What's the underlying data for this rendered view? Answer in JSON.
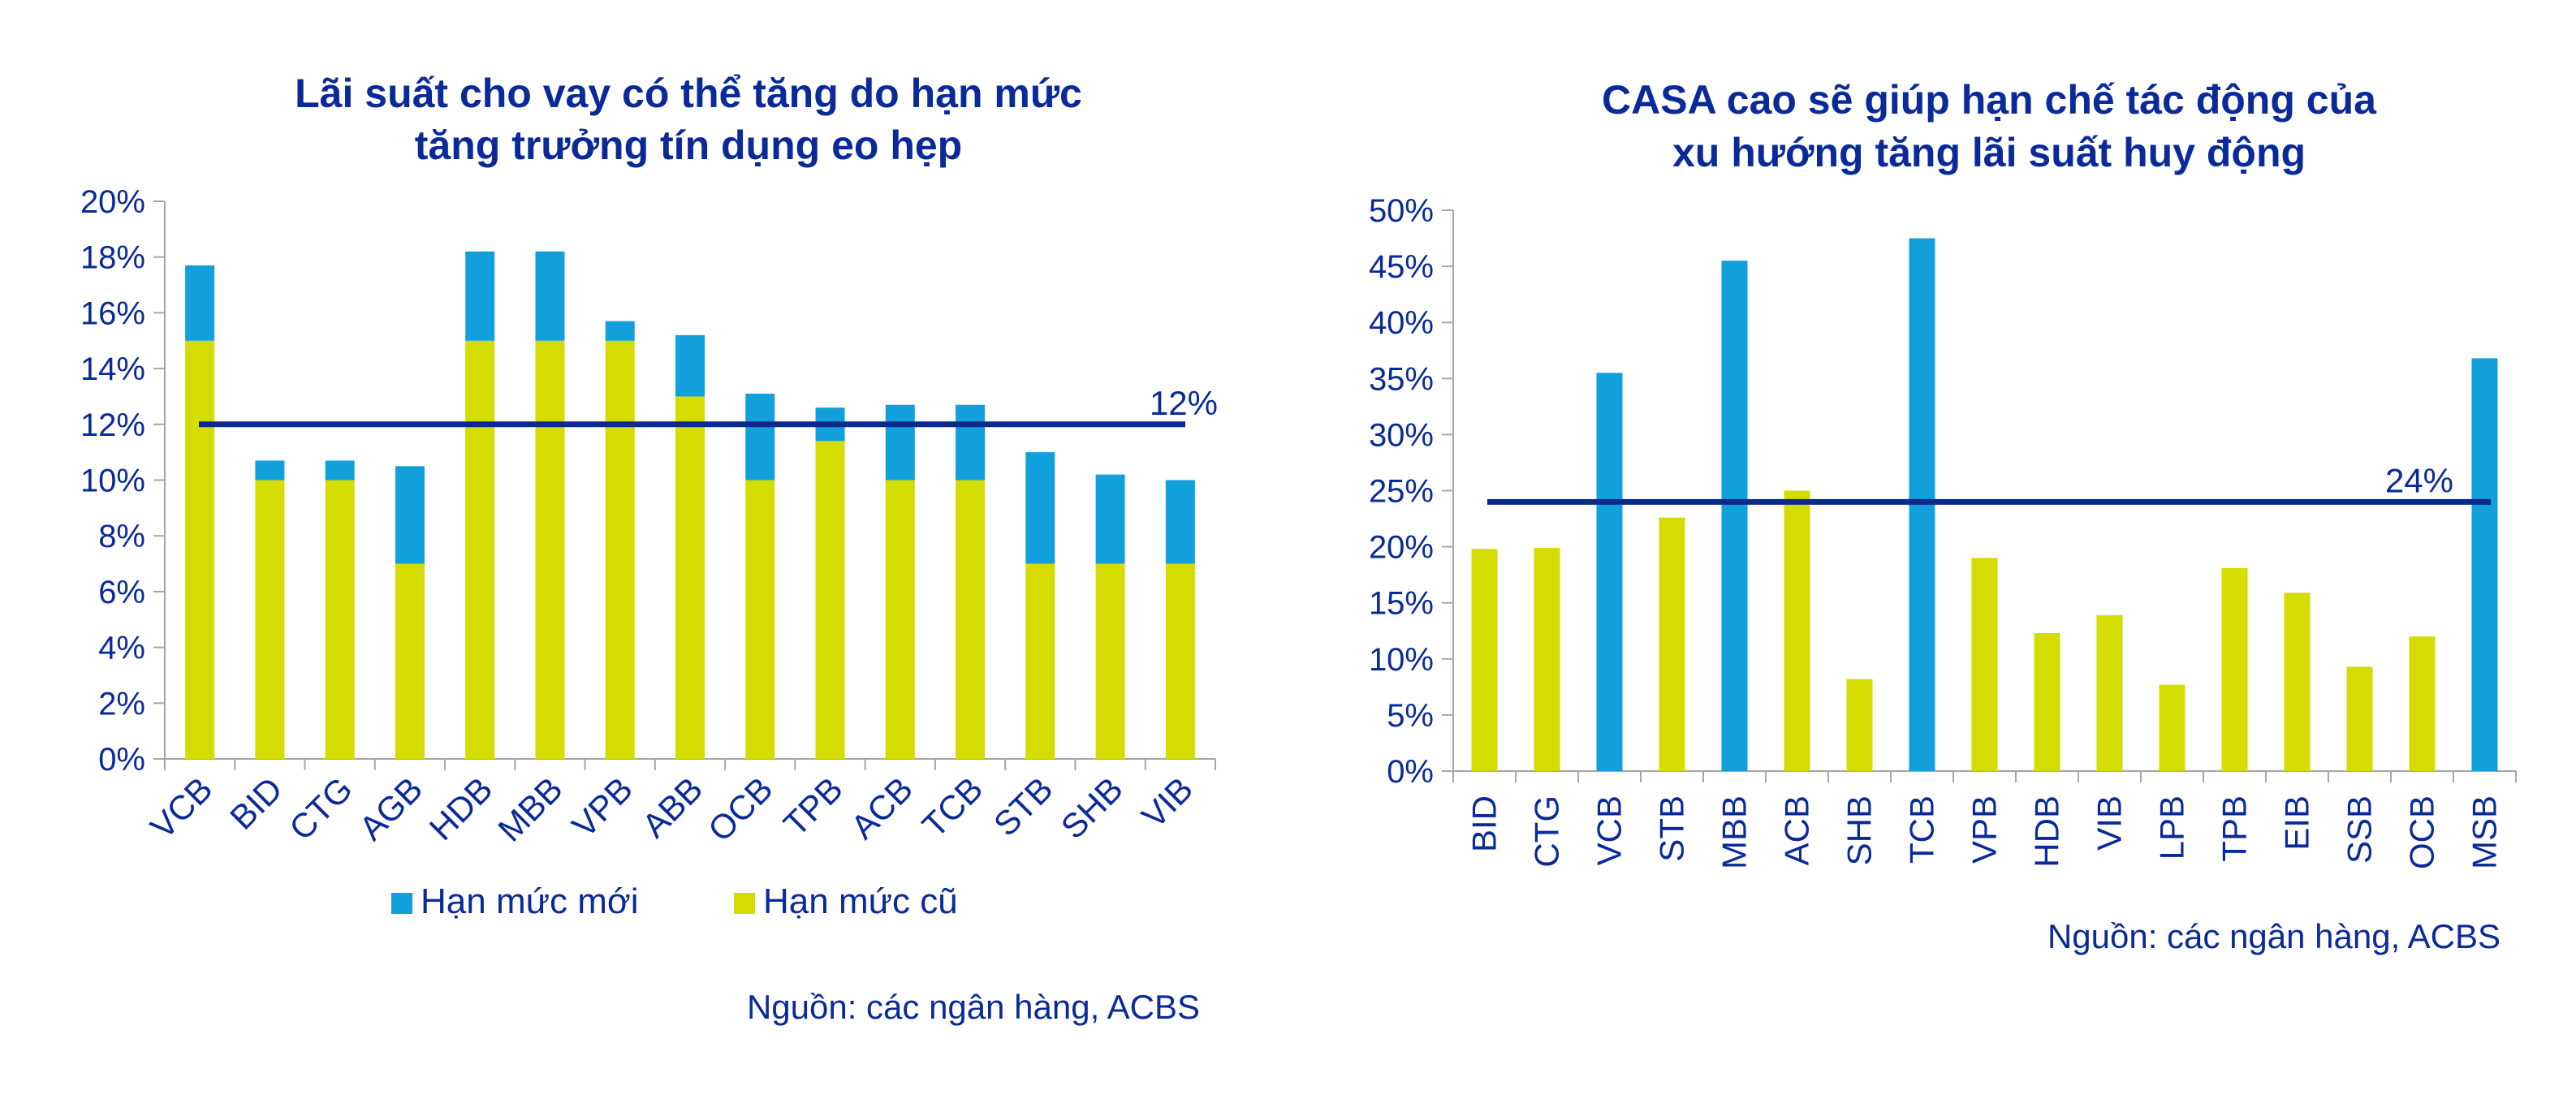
{
  "colors": {
    "text": "#0a2a9a",
    "blue": "#12a0dc",
    "yellow": "#d4dc00",
    "axis": "#a6a6a6",
    "refline": "#0c2a8c"
  },
  "chart_data": [
    {
      "type": "bar",
      "stacked": true,
      "title_lines": [
        "Lãi suất cho vay có thể tăng do hạn mức",
        "tăng trưởng tín dụng eo hẹp"
      ],
      "categories": [
        "VCB",
        "BID",
        "CTG",
        "AGB",
        "HDB",
        "MBB",
        "VPB",
        "ABB",
        "OCB",
        "TPB",
        "ACB",
        "TCB",
        "STB",
        "SHB",
        "VIB"
      ],
      "series": [
        {
          "name": "Hạn mức cũ",
          "color": "#d4dc00",
          "values": [
            15,
            10,
            10,
            7,
            15,
            15,
            15,
            13,
            10,
            11.4,
            10,
            10,
            7,
            7,
            7
          ]
        },
        {
          "name": "Hạn mức mới",
          "color": "#12a0dc",
          "values": [
            2.7,
            0.7,
            0.7,
            3.5,
            3.2,
            3.2,
            0.7,
            2.2,
            3.1,
            1.2,
            2.7,
            2.7,
            4,
            3.2,
            3
          ]
        }
      ],
      "ylim": [
        0,
        20
      ],
      "yticks": [
        "0%",
        "2%",
        "4%",
        "6%",
        "8%",
        "10%",
        "12%",
        "14%",
        "16%",
        "18%",
        "20%"
      ],
      "reference_line": {
        "value": 12,
        "label": "12%"
      },
      "legend": [
        "Hạn mức mới",
        "Hạn mức cũ"
      ],
      "legend_position": "bottom",
      "source": "Nguồn: các ngân hàng, ACBS"
    },
    {
      "type": "bar",
      "title_lines": [
        "CASA cao sẽ giúp hạn chế tác động của",
        "xu hướng tăng lãi suất huy động"
      ],
      "categories": [
        "BID",
        "CTG",
        "VCB",
        "STB",
        "MBB",
        "ACB",
        "SHB",
        "TCB",
        "VPB",
        "HDB",
        "VIB",
        "LPB",
        "TPB",
        "EIB",
        "SSB",
        "OCB",
        "MSB"
      ],
      "values": [
        19.8,
        19.9,
        35.5,
        22.6,
        45.5,
        25,
        8.2,
        47.5,
        19,
        12.3,
        13.9,
        7.7,
        18.1,
        15.9,
        9.3,
        12,
        36.8
      ],
      "highlight": [
        "VCB",
        "MBB",
        "TCB",
        "MSB"
      ],
      "ylim": [
        0,
        50
      ],
      "yticks": [
        "0%",
        "5%",
        "10%",
        "15%",
        "20%",
        "25%",
        "30%",
        "35%",
        "40%",
        "45%",
        "50%"
      ],
      "reference_line": {
        "value": 24,
        "label": "24%"
      },
      "source": "Nguồn: các ngân hàng, ACBS"
    }
  ]
}
